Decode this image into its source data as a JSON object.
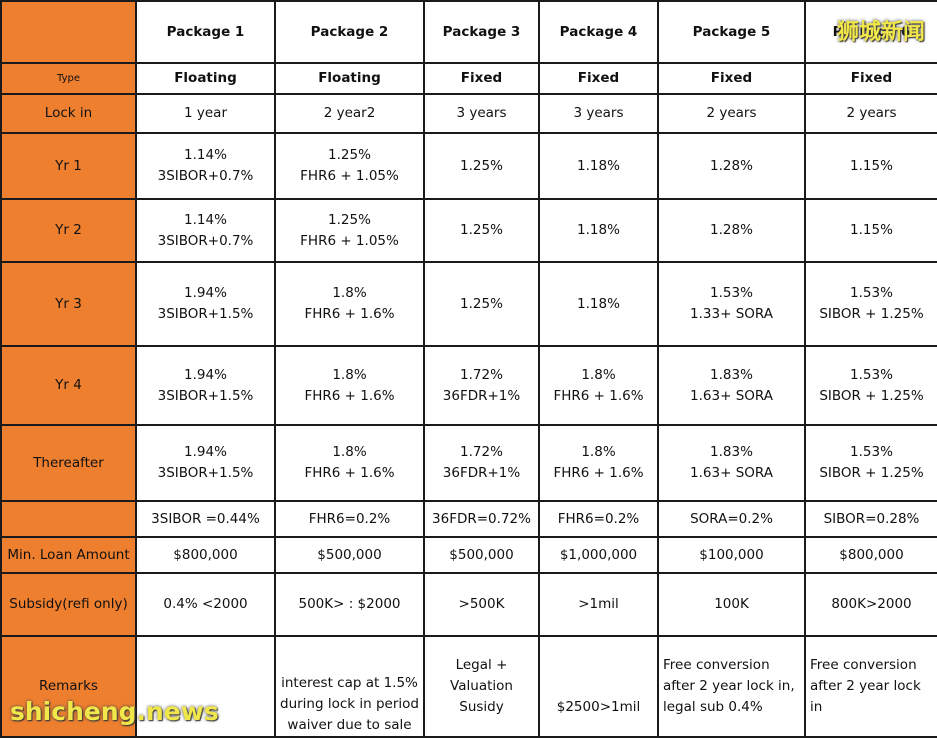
{
  "headers": [
    "",
    "Package 1",
    "Package 2",
    "Package 3",
    "Package 4",
    "Package 5",
    "Package 6"
  ],
  "rows": {
    "type": {
      "label": "Type",
      "values": [
        "Floating",
        "Floating",
        "Fixed",
        "Fixed",
        "Fixed",
        "Fixed"
      ]
    },
    "lock_in": {
      "label": "Lock in",
      "values": [
        "1 year",
        "2 year2",
        "3 years",
        "3 years",
        "2 years",
        "2 years"
      ]
    },
    "yr1": {
      "label": "Yr 1",
      "rate": [
        "1.14%",
        "1.25%",
        "1.25%",
        "1.18%",
        "1.28%",
        "1.15%"
      ],
      "formula": [
        "3SIBOR+0.7%",
        "FHR6 + 1.05%",
        "",
        "",
        "",
        ""
      ]
    },
    "yr2": {
      "label": "Yr 2",
      "rate": [
        "1.14%",
        "1.25%",
        "1.25%",
        "1.18%",
        "1.28%",
        "1.15%"
      ],
      "formula": [
        "3SIBOR+0.7%",
        "FHR6 + 1.05%",
        "",
        "",
        "",
        ""
      ]
    },
    "yr3": {
      "label": "Yr 3",
      "rate": [
        "1.94%",
        "1.8%",
        "1.25%",
        "1.18%",
        "1.53%",
        "1.53%"
      ],
      "formula": [
        "3SIBOR+1.5%",
        "FHR6 + 1.6%",
        "",
        "",
        "1.33+ SORA",
        "SIBOR + 1.25%"
      ]
    },
    "yr4": {
      "label": "Yr 4",
      "rate": [
        "1.94%",
        "1.8%",
        "1.72%",
        "1.8%",
        "1.83%",
        "1.53%"
      ],
      "formula": [
        "3SIBOR+1.5%",
        "FHR6 + 1.6%",
        "36FDR+1%",
        "FHR6 + 1.6%",
        "1.63+ SORA",
        "SIBOR + 1.25%"
      ]
    },
    "thereafter": {
      "label": "Thereafter",
      "rate": [
        "1.94%",
        "1.8%",
        "1.72%",
        "1.8%",
        "1.83%",
        "1.53%"
      ],
      "formula": [
        "3SIBOR+1.5%",
        "FHR6 + 1.6%",
        "36FDR+1%",
        "FHR6 + 1.6%",
        "1.63+ SORA",
        "SIBOR + 1.25%"
      ]
    },
    "benchmark": {
      "label": "",
      "values": [
        "3SIBOR =0.44%",
        "FHR6=0.2%",
        "36FDR=0.72%",
        "FHR6=0.2%",
        "SORA=0.2%",
        "SIBOR=0.28%"
      ]
    },
    "min_loan": {
      "label": "Min. Loan Amount",
      "values": [
        "$800,000",
        "$500,000",
        "$500,000",
        "$1,000,000",
        "$100,000",
        "$800,000"
      ]
    },
    "subsidy": {
      "label": "Subsidy(refi only)",
      "values": [
        "0.4% <2000",
        "500K> : $2000",
        ">500K",
        ">1mil",
        "100K",
        "800K>2000"
      ]
    },
    "remarks": {
      "label": "Remarks",
      "values": [
        [],
        [
          "interest cap at 1.5%",
          "during lock in period",
          "waiver due to sale"
        ],
        [
          "Legal +",
          "Valuation",
          "Susidy"
        ],
        [
          "$2500>1mil"
        ],
        [
          "Free conversion",
          "after 2 year lock in,",
          "legal sub 0.4%"
        ],
        [
          "Free conversion",
          "after 2 year lock",
          "in"
        ]
      ]
    }
  },
  "watermark": {
    "top": "狮城新闻",
    "bottom": "shicheng.news"
  },
  "colors": {
    "label_bg": "#ee7f2f",
    "red": "#e5232c",
    "blue": "#1aa6d9",
    "purple": "#6a3a96",
    "watermark": "#f1e64a"
  }
}
